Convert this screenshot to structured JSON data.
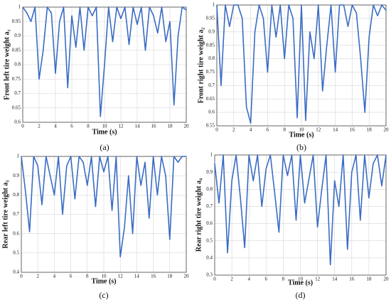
{
  "chart_data": [
    {
      "type": "line",
      "panel": "(a)",
      "xlabel": "Time (s)",
      "ylabel": "Front left tire weight a₁",
      "color": "#3a6cc4",
      "grid": true,
      "x": [
        0,
        0.5,
        1,
        1.5,
        2,
        2.5,
        3,
        3.5,
        4,
        4.5,
        5,
        5.5,
        6,
        6.5,
        7,
        7.5,
        8,
        8.5,
        9,
        9.5,
        10,
        10.5,
        11,
        11.5,
        12,
        12.5,
        13,
        13.5,
        14,
        14.5,
        15,
        15.5,
        16,
        16.5,
        17,
        17.5,
        18,
        18.5,
        19,
        19.5,
        20
      ],
      "values": [
        1,
        0.98,
        0.95,
        1,
        0.75,
        0.85,
        1,
        0.98,
        0.77,
        0.95,
        1,
        0.72,
        0.97,
        0.86,
        1,
        0.85,
        1,
        0.97,
        1,
        0.62,
        0.8,
        1,
        0.88,
        1,
        0.96,
        1,
        0.87,
        1,
        0.94,
        1,
        0.85,
        1,
        0.97,
        0.91,
        1,
        0.88,
        0.95,
        0.66,
        0.9,
        1,
        0.99
      ],
      "xlim": [
        0,
        20
      ],
      "xticks": [
        0,
        2,
        4,
        6,
        8,
        10,
        12,
        14,
        16,
        18,
        20
      ],
      "ylim": [
        0.6,
        1
      ],
      "yticks": [
        0.6,
        0.65,
        0.7,
        0.75,
        0.8,
        0.85,
        0.9,
        0.95,
        1
      ]
    },
    {
      "type": "line",
      "panel": "(b)",
      "xlabel": "Time (s)",
      "ylabel": "Front right tire weight a₂",
      "color": "#3a6cc4",
      "grid": true,
      "x": [
        0,
        0.5,
        1,
        1.5,
        2,
        2.5,
        3,
        3.5,
        4,
        4.5,
        5,
        5.5,
        6,
        6.5,
        7,
        7.5,
        8,
        8.5,
        9,
        9.5,
        10,
        10.5,
        11,
        11.5,
        12,
        12.5,
        13,
        13.5,
        14,
        14.5,
        15,
        15.5,
        16,
        16.5,
        17,
        17.5,
        18,
        18.5,
        19,
        19.5,
        20
      ],
      "values": [
        1,
        0.7,
        1,
        0.92,
        1,
        1,
        0.95,
        0.62,
        0.56,
        0.9,
        1,
        0.95,
        0.75,
        1,
        0.88,
        1,
        0.8,
        1,
        0.95,
        0.58,
        1,
        0.57,
        0.9,
        0.8,
        1,
        0.68,
        0.85,
        1,
        0.75,
        1,
        1,
        0.92,
        1,
        0.97,
        0.8,
        0.6,
        0.88,
        1,
        0.96,
        1,
        0.98
      ],
      "xlim": [
        0,
        20
      ],
      "xticks": [
        0,
        2,
        4,
        6,
        8,
        10,
        12,
        14,
        16,
        18,
        20
      ],
      "ylim": [
        0.55,
        1
      ],
      "yticks": [
        0.55,
        0.6,
        0.65,
        0.7,
        0.75,
        0.8,
        0.85,
        0.9,
        0.95,
        1
      ]
    },
    {
      "type": "line",
      "panel": "(c)",
      "xlabel": "Time (s)",
      "ylabel": "Rear left tire weight a₃",
      "color": "#3a6cc4",
      "grid": true,
      "x": [
        0,
        0.5,
        1,
        1.5,
        2,
        2.5,
        3,
        3.5,
        4,
        4.5,
        5,
        5.5,
        6,
        6.5,
        7,
        7.5,
        8,
        8.5,
        9,
        9.5,
        10,
        10.5,
        11,
        11.5,
        12,
        12.5,
        13,
        13.5,
        14,
        14.5,
        15,
        15.5,
        16,
        16.5,
        17,
        17.5,
        18,
        18.5,
        19,
        19.5,
        20
      ],
      "values": [
        1,
        0.82,
        0.61,
        1,
        0.95,
        0.75,
        1,
        0.9,
        0.8,
        1,
        0.7,
        0.95,
        1,
        0.78,
        1,
        0.97,
        0.85,
        1,
        0.74,
        1,
        0.92,
        1,
        0.72,
        1,
        0.48,
        0.63,
        0.9,
        0.6,
        1,
        0.85,
        0.97,
        0.68,
        1,
        0.8,
        1,
        0.9,
        0.57,
        1,
        0.97,
        1,
        1
      ],
      "xlim": [
        0,
        20
      ],
      "xticks": [
        0,
        2,
        4,
        6,
        8,
        10,
        12,
        14,
        16,
        18,
        20
      ],
      "ylim": [
        0.4,
        1
      ],
      "yticks": [
        0.4,
        0.5,
        0.6,
        0.7,
        0.8,
        0.9,
        1
      ]
    },
    {
      "type": "line",
      "panel": "(d)",
      "xlabel": "Time (s)",
      "ylabel": "Rear right tire weight a₄",
      "color": "#3a6cc4",
      "grid": true,
      "x": [
        0,
        0.5,
        1,
        1.5,
        2,
        2.5,
        3,
        3.5,
        4,
        4.5,
        5,
        5.5,
        6,
        6.5,
        7,
        7.5,
        8,
        8.5,
        9,
        9.5,
        10,
        10.5,
        11,
        11.5,
        12,
        12.5,
        13,
        13.5,
        14,
        14.5,
        15,
        15.5,
        16,
        16.5,
        17,
        17.5,
        18,
        18.5,
        19,
        19.5,
        20
      ],
      "values": [
        0.95,
        0.72,
        1,
        0.43,
        0.85,
        1,
        0.75,
        0.46,
        1,
        0.85,
        1,
        0.7,
        0.92,
        1,
        0.78,
        0.55,
        1,
        0.88,
        1,
        0.62,
        1,
        0.72,
        0.86,
        1,
        0.58,
        0.8,
        1,
        0.36,
        0.85,
        0.7,
        1,
        0.45,
        0.9,
        1,
        0.62,
        1,
        0.75,
        0.95,
        1,
        0.82,
        1
      ],
      "xlim": [
        0,
        20
      ],
      "xticks": [
        0,
        2,
        4,
        6,
        8,
        10,
        12,
        14,
        16,
        18,
        20
      ],
      "ylim": [
        0.3,
        1
      ],
      "yticks": [
        0.3,
        0.4,
        0.5,
        0.6,
        0.7,
        0.8,
        0.9,
        1
      ]
    }
  ]
}
